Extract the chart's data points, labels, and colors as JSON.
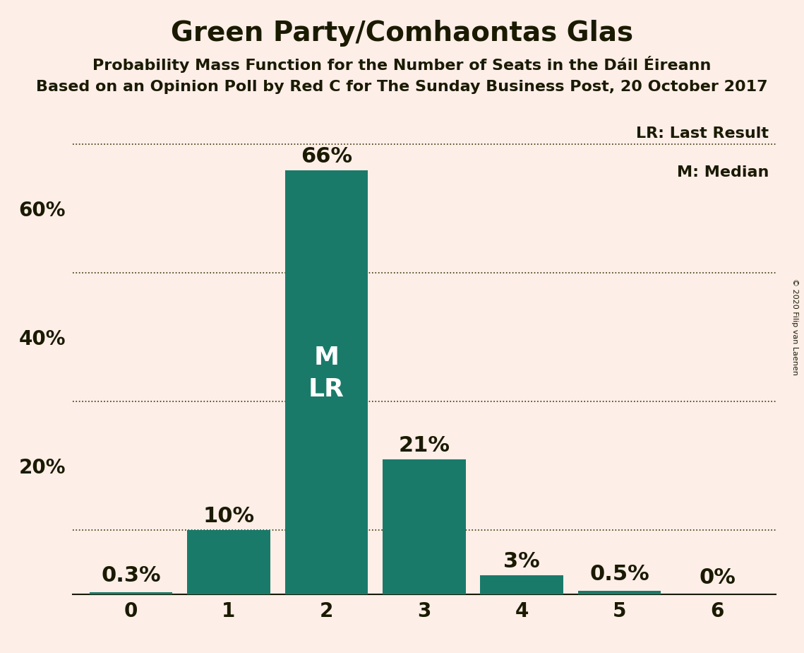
{
  "title": "Green Party/Comhaontas Glas",
  "subtitle1": "Probability Mass Function for the Number of Seats in the Dáil Éireann",
  "subtitle2": "Based on an Opinion Poll by Red C for The Sunday Business Post, 20 October 2017",
  "copyright": "© 2020 Filip van Laenen",
  "categories": [
    0,
    1,
    2,
    3,
    4,
    5,
    6
  ],
  "values": [
    0.003,
    0.1,
    0.66,
    0.21,
    0.03,
    0.005,
    0.0
  ],
  "labels": [
    "0.3%",
    "10%",
    "66%",
    "21%",
    "3%",
    "0.5%",
    "0%"
  ],
  "bar_color": "#1a7a6a",
  "background_color": "#fdeee8",
  "text_color": "#1a1a00",
  "median_bar": 2,
  "median_label": "M",
  "last_result_label": "LR",
  "legend_lr": "LR: Last Result",
  "legend_m": "M: Median",
  "ylim": [
    0,
    0.75
  ],
  "dotted_grid_yticks": [
    0.1,
    0.3,
    0.5,
    0.7
  ],
  "shown_yticks": [
    0.2,
    0.4,
    0.6
  ],
  "shown_ytick_labels": [
    "20%",
    "40%",
    "60%"
  ],
  "title_fontsize": 28,
  "subtitle_fontsize": 16,
  "tick_fontsize": 20,
  "legend_fontsize": 16,
  "bar_label_fontsize": 22,
  "inside_label_fontsize": 26
}
